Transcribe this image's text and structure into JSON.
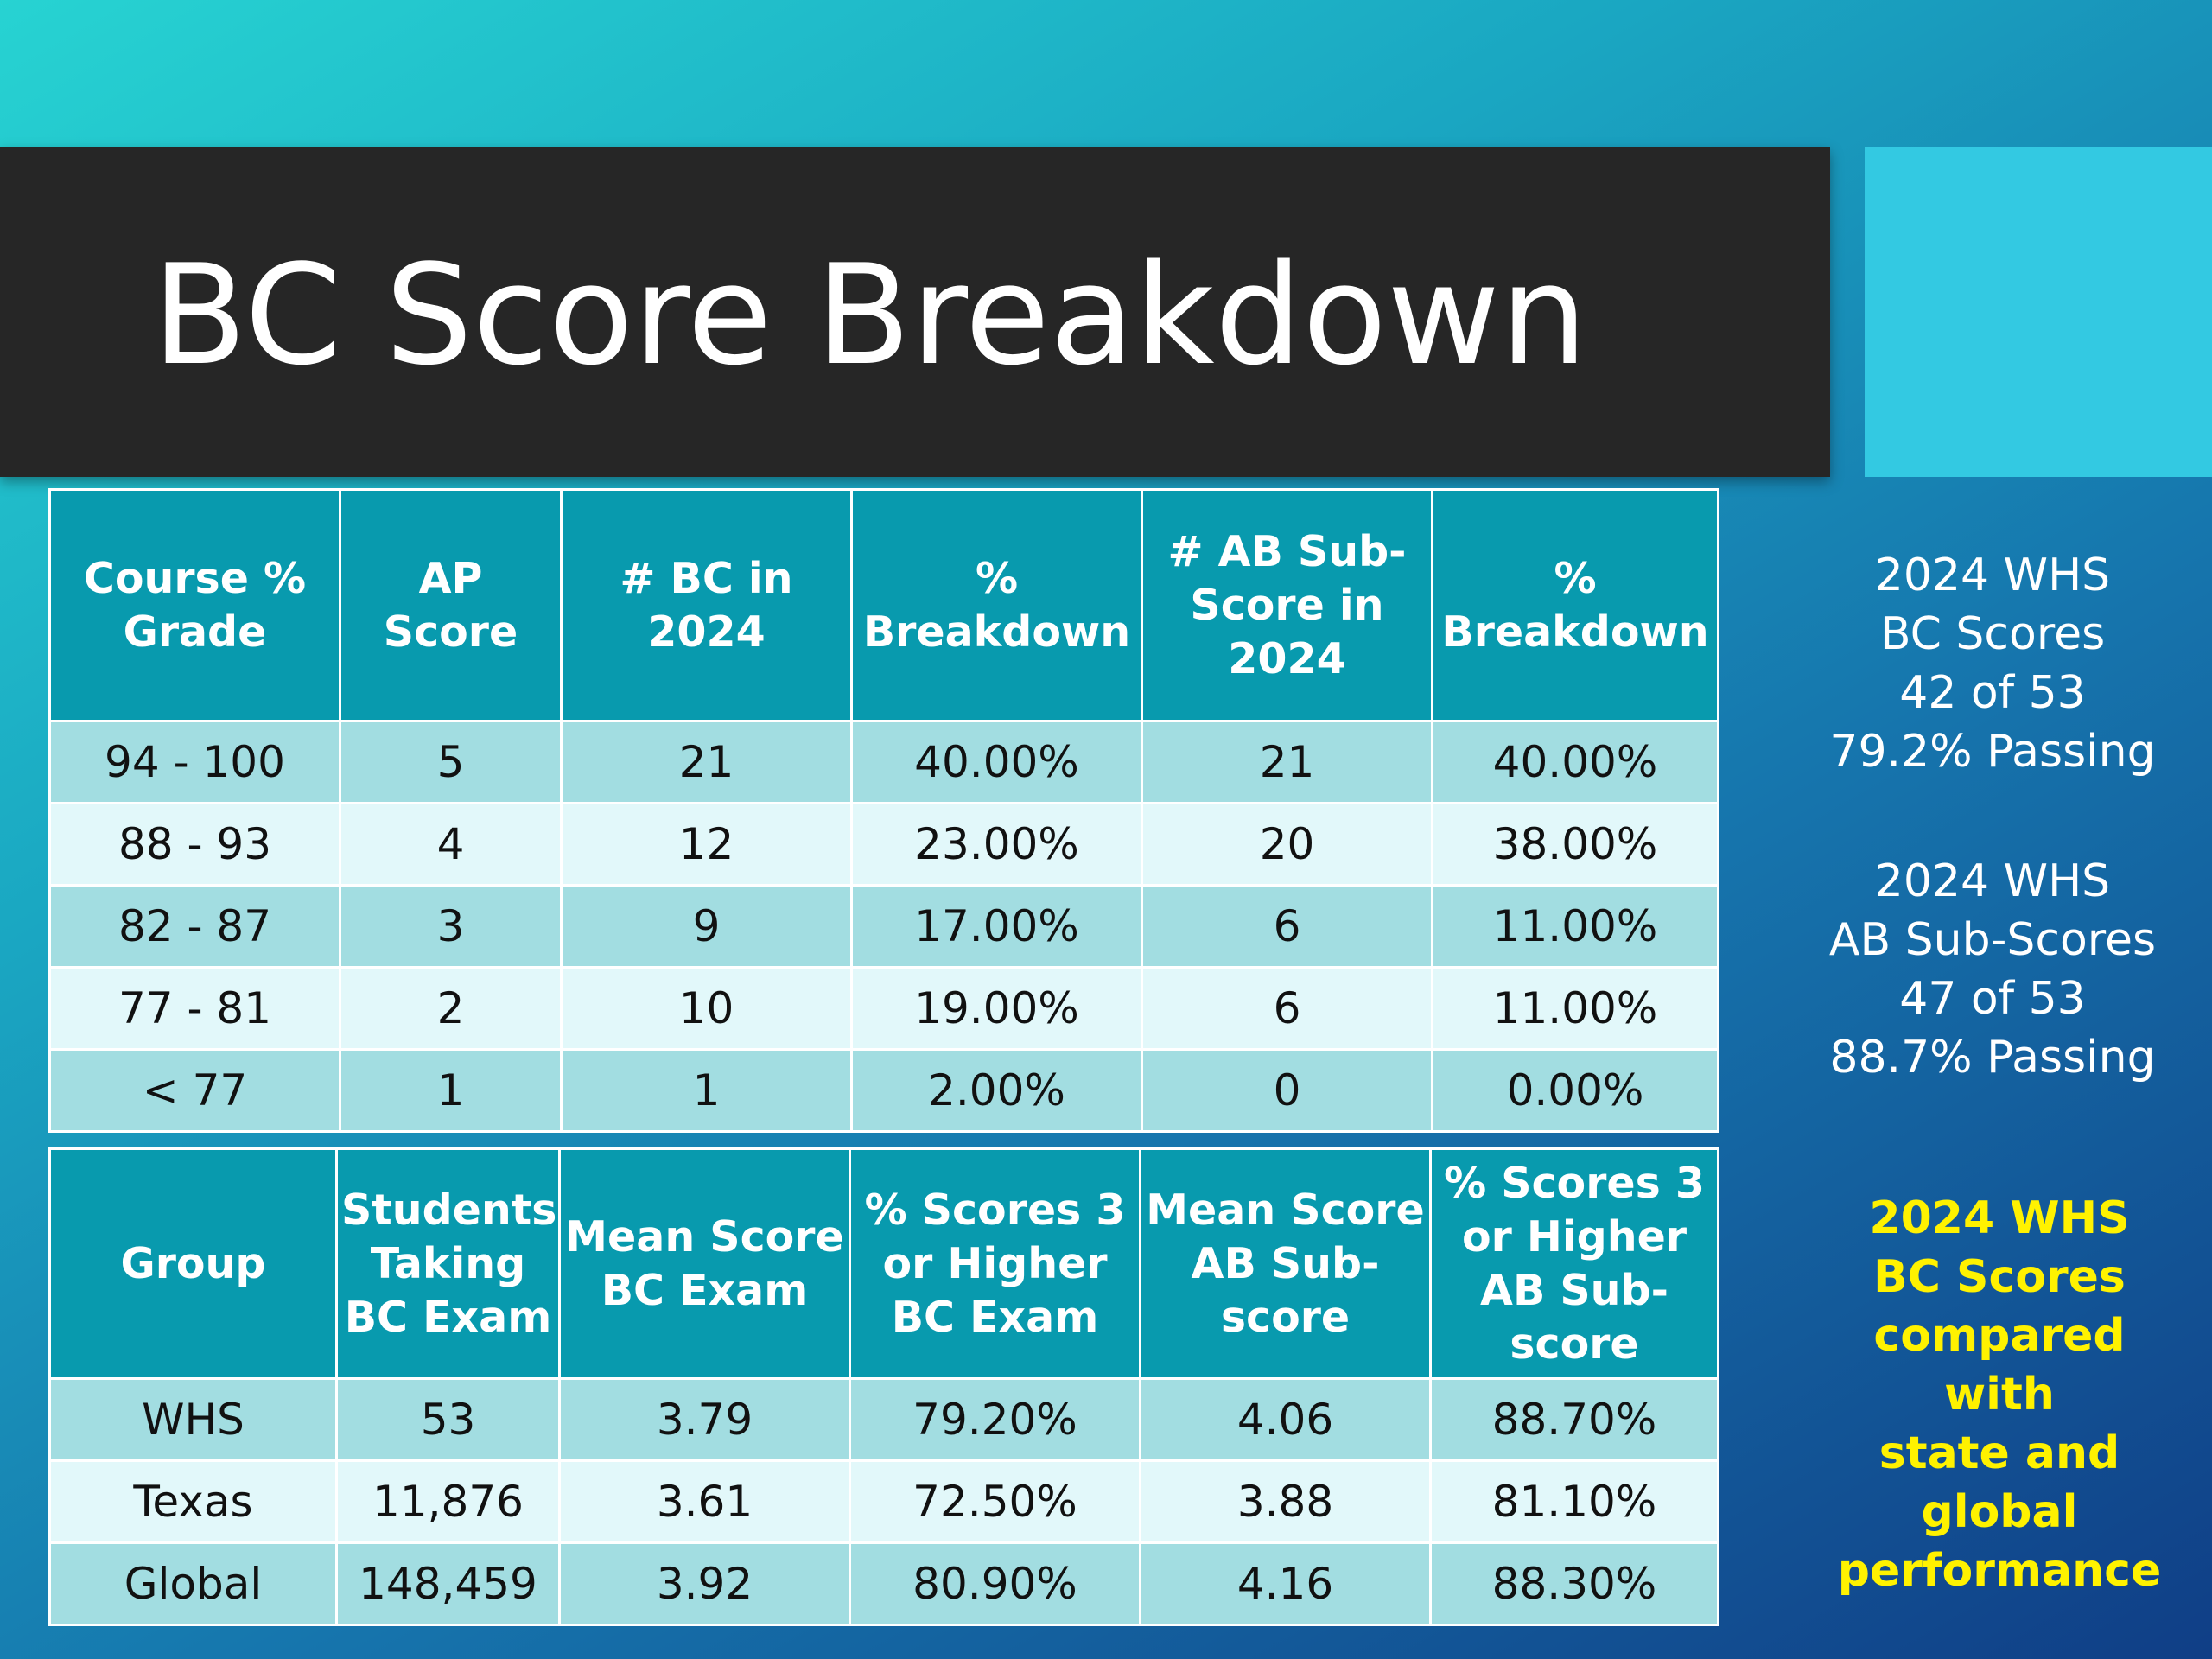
{
  "title": "BC Score Breakdown",
  "colors": {
    "title_bar": "#262626",
    "accent_box": "#33c9e2",
    "header_cell": "#089aae",
    "row_dark": "#a2dde1",
    "row_light": "#e2f8fa",
    "highlight_text": "#fff200"
  },
  "table1": {
    "headers": [
      "Course % Grade",
      "AP Score",
      "# BC in 2024",
      "% Breakdown",
      "# AB Sub-Score in 2024",
      "% Breakdown"
    ],
    "rows": [
      [
        "94 - 100",
        "5",
        "21",
        "40.00%",
        "21",
        "40.00%"
      ],
      [
        "88 - 93",
        "4",
        "12",
        "23.00%",
        "20",
        "38.00%"
      ],
      [
        "82 - 87",
        "3",
        "9",
        "17.00%",
        "6",
        "11.00%"
      ],
      [
        "77 - 81",
        "2",
        "10",
        "19.00%",
        "6",
        "11.00%"
      ],
      [
        "< 77",
        "1",
        "1",
        "2.00%",
        "0",
        "0.00%"
      ]
    ]
  },
  "table2": {
    "headers": [
      "Group",
      "Students Taking BC Exam",
      "Mean Score BC Exam",
      "% Scores 3 or Higher BC Exam",
      "Mean Score AB Sub-score",
      "% Scores 3 or Higher AB Sub-score"
    ],
    "rows": [
      [
        "WHS",
        "53",
        "3.79",
        "79.20%",
        "4.06",
        "88.70%"
      ],
      [
        "Texas",
        "11,876",
        "3.61",
        "72.50%",
        "3.88",
        "81.10%"
      ],
      [
        "Global",
        "148,459",
        "3.92",
        "80.90%",
        "4.16",
        "88.30%"
      ]
    ]
  },
  "side_bc": [
    "2024 WHS",
    "BC Scores",
    "42 of 53",
    "79.2% Passing"
  ],
  "side_ab": [
    "2024 WHS",
    "AB Sub-Scores",
    "47 of 53",
    "88.7% Passing"
  ],
  "side_compare": [
    "2024 WHS",
    "BC Scores",
    "compared",
    "with",
    "state and",
    "global",
    "performance"
  ]
}
